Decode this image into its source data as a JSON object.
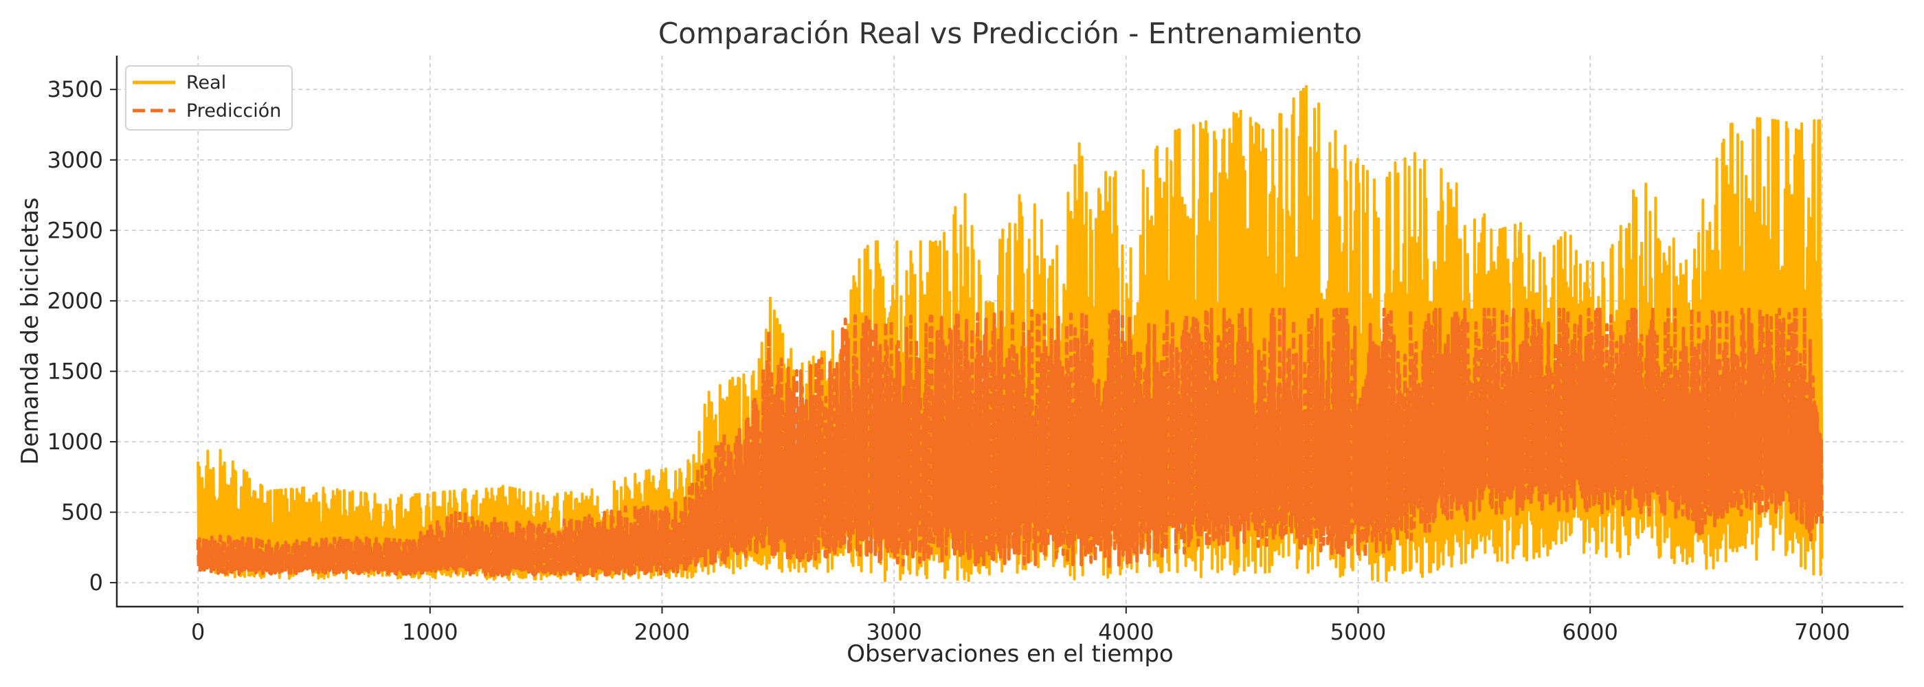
{
  "chart_data": {
    "type": "line",
    "title": "Comparación Real vs Predicción - Entrenamiento",
    "xlabel": "Observaciones en el tiempo",
    "ylabel": "Demanda de bicicletas",
    "xlim": [
      -350,
      7350
    ],
    "ylim": [
      -170,
      3740
    ],
    "x_ticks": [
      0,
      1000,
      2000,
      3000,
      4000,
      5000,
      6000,
      7000
    ],
    "x_tick_labels": [
      "0",
      "1000",
      "2000",
      "3000",
      "4000",
      "5000",
      "6000",
      "7000"
    ],
    "y_ticks": [
      0,
      500,
      1000,
      1500,
      2000,
      2500,
      3000,
      3500
    ],
    "y_tick_labels": [
      "0",
      "500",
      "1000",
      "1500",
      "2000",
      "2500",
      "3000",
      "3500"
    ],
    "grid": true,
    "legend_position": "top-left",
    "series": [
      {
        "name": "Real",
        "color": "#FFB000",
        "style": "solid",
        "envelope": {
          "x": [
            0,
            100,
            300,
            500,
            700,
            900,
            1100,
            1300,
            1500,
            1700,
            1900,
            2000,
            2100,
            2200,
            2300,
            2400,
            2450,
            2500,
            2600,
            2700,
            2800,
            2900,
            2950,
            3000,
            3100,
            3200,
            3300,
            3400,
            3500,
            3600,
            3700,
            3800,
            3850,
            3900,
            3950,
            4000,
            4100,
            4200,
            4300,
            4400,
            4500,
            4600,
            4700,
            4800,
            4820,
            4900,
            5000,
            5100,
            5200,
            5300,
            5400,
            5500,
            5600,
            5700,
            5800,
            5900,
            6000,
            6100,
            6200,
            6300,
            6400,
            6500,
            6600,
            6700,
            6800,
            6900,
            6950,
            7000
          ],
          "high": [
            930,
            940,
            650,
            680,
            640,
            620,
            650,
            690,
            620,
            660,
            780,
            820,
            800,
            1350,
            1450,
            1500,
            2100,
            1850,
            1550,
            1650,
            2200,
            2420,
            2420,
            2420,
            2420,
            2420,
            2800,
            2050,
            2780,
            2700,
            2400,
            3130,
            2600,
            2900,
            2950,
            2500,
            3100,
            3200,
            3250,
            3300,
            3350,
            3200,
            3400,
            3560,
            3420,
            3250,
            3000,
            2800,
            3100,
            2980,
            2900,
            2700,
            2500,
            2550,
            2300,
            2500,
            2250,
            2400,
            2850,
            2800,
            2200,
            2800,
            3250,
            3300,
            3280,
            3250,
            3280,
            3280
          ],
          "low": [
            70,
            40,
            30,
            30,
            30,
            30,
            30,
            20,
            20,
            20,
            30,
            30,
            30,
            60,
            60,
            80,
            90,
            80,
            70,
            80,
            60,
            60,
            10,
            10,
            20,
            20,
            10,
            10,
            20,
            20,
            10,
            10,
            10,
            10,
            20,
            20,
            20,
            40,
            20,
            30,
            40,
            60,
            60,
            30,
            20,
            20,
            10,
            10,
            20,
            40,
            100,
            120,
            130,
            160,
            160,
            160,
            160,
            160,
            160,
            160,
            120,
            20,
            160,
            160,
            160,
            100,
            30,
            0
          ]
        }
      },
      {
        "name": "Predicción",
        "color": "#F36F21",
        "style": "dashed",
        "envelope": {
          "x": [
            0,
            100,
            300,
            500,
            700,
            900,
            1100,
            1300,
            1500,
            1700,
            1900,
            2000,
            2100,
            2200,
            2300,
            2400,
            2450,
            2500,
            2600,
            2700,
            2800,
            2900,
            2950,
            3000,
            3100,
            3200,
            3300,
            3400,
            3500,
            3600,
            3700,
            3800,
            3850,
            3900,
            3950,
            4000,
            4100,
            4200,
            4300,
            4400,
            4500,
            4600,
            4700,
            4800,
            4820,
            4900,
            5000,
            5100,
            5200,
            5300,
            5400,
            5500,
            5600,
            5700,
            5800,
            5900,
            6000,
            6100,
            6200,
            6300,
            6400,
            6500,
            6600,
            6700,
            6800,
            6900,
            6950,
            7000
          ],
          "high": [
            310,
            330,
            300,
            310,
            320,
            300,
            500,
            450,
            420,
            480,
            560,
            520,
            600,
            1000,
            1100,
            1300,
            1830,
            1600,
            1500,
            1600,
            1900,
            1880,
            1890,
            1890,
            1890,
            1890,
            1920,
            1900,
            1930,
            1930,
            1880,
            1920,
            1900,
            1930,
            1930,
            1900,
            1940,
            1940,
            1940,
            1940,
            1940,
            1940,
            1940,
            1940,
            1940,
            1940,
            1940,
            1940,
            1940,
            1940,
            1940,
            1940,
            1940,
            1940,
            1940,
            1940,
            1940,
            1940,
            1940,
            1940,
            1940,
            1940,
            1940,
            1940,
            1940,
            1940,
            1940,
            1180
          ],
          "low": [
            90,
            60,
            60,
            70,
            60,
            60,
            60,
            50,
            50,
            50,
            60,
            60,
            70,
            130,
            140,
            160,
            170,
            160,
            150,
            160,
            150,
            140,
            120,
            110,
            130,
            120,
            100,
            100,
            120,
            120,
            100,
            100,
            100,
            100,
            110,
            130,
            140,
            200,
            200,
            220,
            240,
            260,
            260,
            220,
            200,
            200,
            150,
            170,
            300,
            320,
            400,
            440,
            470,
            480,
            500,
            500,
            480,
            480,
            480,
            470,
            450,
            300,
            470,
            480,
            480,
            450,
            300,
            400
          ]
        }
      }
    ]
  }
}
